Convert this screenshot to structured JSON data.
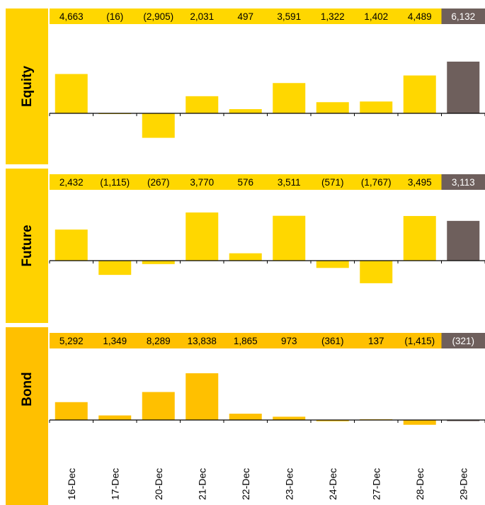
{
  "chart_data": {
    "type": "bar",
    "categories": [
      "16-Dec",
      "17-Dec",
      "20-Dec",
      "21-Dec",
      "22-Dec",
      "23-Dec",
      "24-Dec",
      "27-Dec",
      "28-Dec",
      "29-Dec"
    ],
    "colors": {
      "bar": "#FFD700",
      "bar_dark": "#FFC000",
      "latest": "#6E5F5C",
      "strip_label": "#FFD200",
      "strip_label_dark": "#FFC000"
    },
    "panels": [
      {
        "name": "Equity",
        "values": [
          4663,
          -16,
          -2905,
          2031,
          497,
          3591,
          1322,
          1402,
          4489,
          6132
        ],
        "labels": [
          "4,663",
          "(16)",
          "(2,905)",
          "2,031",
          "497",
          "3,591",
          "1,322",
          "1,402",
          "4,489",
          "6,132"
        ]
      },
      {
        "name": "Future",
        "values": [
          2432,
          -1115,
          -267,
          3770,
          576,
          3511,
          -571,
          -1767,
          3495,
          3113
        ],
        "labels": [
          "2,432",
          "(1,115)",
          "(267)",
          "3,770",
          "576",
          "3,511",
          "(571)",
          "(1,767)",
          "3,495",
          "3,113"
        ]
      },
      {
        "name": "Bond",
        "values": [
          5292,
          1349,
          8289,
          13838,
          1865,
          973,
          -361,
          137,
          -1415,
          -321
        ],
        "labels": [
          "5,292",
          "1,349",
          "8,289",
          "13,838",
          "1,865",
          "973",
          "(361)",
          "137",
          "(1,415)",
          "(321)"
        ]
      }
    ]
  }
}
